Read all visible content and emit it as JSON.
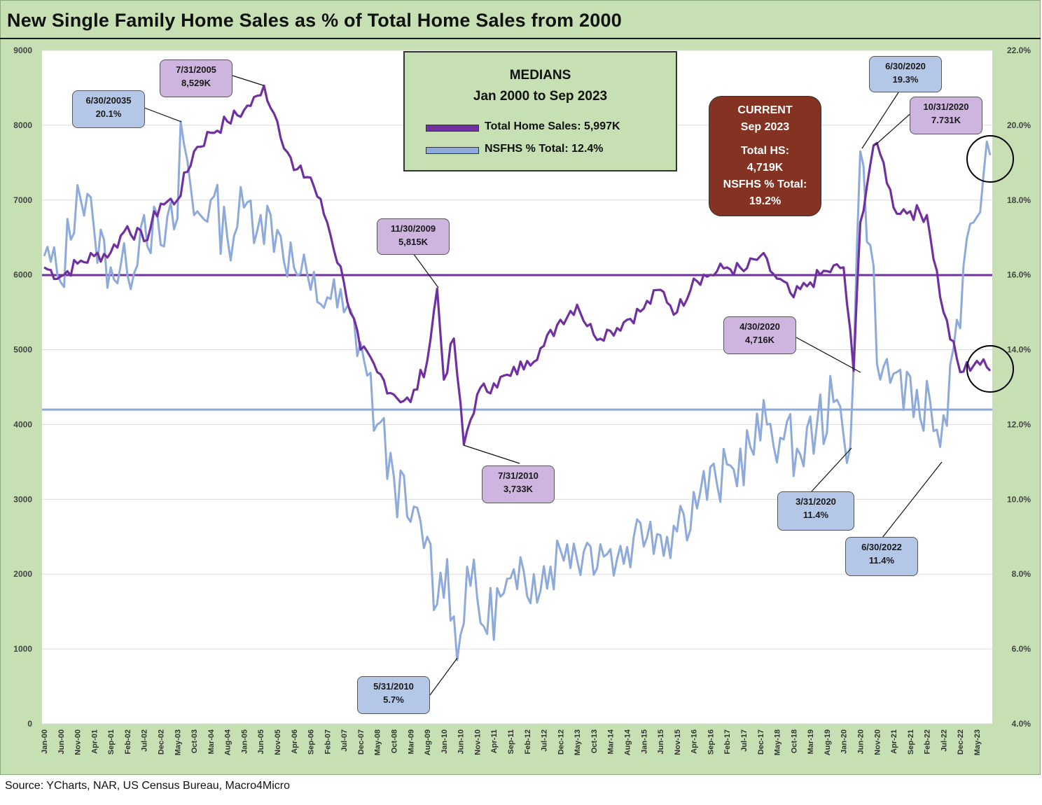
{
  "title": "New Single Family Home Sales as % of Total Home Sales from 2000",
  "source": "Source: YCharts, NAR, US Census Bureau, Macro4Micro",
  "colors": {
    "total_line": "#7030a0",
    "nsfhs_line": "#8eaadb",
    "panel": "#c6e0b4",
    "current_box": "#843222"
  },
  "medians_box": {
    "heading": "MEDIANS",
    "subheading": "Jan 2000 to Sep 2023",
    "legend_total": "Total Home Sales: 5,997K",
    "legend_nsfhs": "NSFHS % Total: 12.4%"
  },
  "current_box": {
    "l1": "CURRENT",
    "l2": "Sep 2023",
    "l3": "Total HS:",
    "l4": "4,719K",
    "l5": "NSFHS % Total:",
    "l6": "19.2%"
  },
  "callouts": [
    {
      "id": "c1",
      "date": "6/30/20035",
      "value": "20.1%",
      "color": "blue"
    },
    {
      "id": "c2",
      "date": "7/31/2005",
      "value": "8,529K",
      "color": "purple"
    },
    {
      "id": "c3",
      "date": "11/30/2009",
      "value": "5,815K",
      "color": "purple"
    },
    {
      "id": "c4",
      "date": "7/31/2010",
      "value": "3,733K",
      "color": "purple"
    },
    {
      "id": "c5",
      "date": "5/31/2010",
      "value": "5.7%",
      "color": "blue"
    },
    {
      "id": "c6",
      "date": "6/30/2020",
      "value": "19.3%",
      "color": "blue"
    },
    {
      "id": "c7",
      "date": "10/31/2020",
      "value": "7.731K",
      "color": "purple"
    },
    {
      "id": "c8",
      "date": "4/30/2020",
      "value": "4,716K",
      "color": "purple"
    },
    {
      "id": "c9",
      "date": "3/31/2020",
      "value": "11.4%",
      "color": "blue"
    },
    {
      "id": "c10",
      "date": "6/30/2022",
      "value": "11.4%",
      "color": "blue"
    }
  ],
  "chart_data": {
    "type": "line",
    "title": "New Single Family Home Sales as % of Total Home Sales from 2000",
    "y_left": {
      "min": 0,
      "max": 9000,
      "step": 1000,
      "ticks": [
        "0",
        "1000",
        "2000",
        "3000",
        "4000",
        "5000",
        "6000",
        "7000",
        "8000",
        "9000"
      ]
    },
    "y_right": {
      "min": 4,
      "max": 22,
      "step": 2,
      "ticks": [
        "4.0%",
        "6.0%",
        "8.0%",
        "10.0%",
        "12.0%",
        "14.0%",
        "16.0%",
        "18.0%",
        "20.0%",
        "22.0%"
      ]
    },
    "x_tick_labels": [
      "Jan-00",
      "Jun-00",
      "Nov-00",
      "Apr-01",
      "Sep-01",
      "Feb-02",
      "Jul-02",
      "Dec-02",
      "May-03",
      "Oct-03",
      "Mar-04",
      "Aug-04",
      "Jan-05",
      "Jun-05",
      "Nov-05",
      "Apr-06",
      "Sep-06",
      "Feb-07",
      "Jul-07",
      "Dec-07",
      "May-08",
      "Oct-08",
      "Mar-09",
      "Aug-09",
      "Jan-10",
      "Jun-10",
      "Nov-10",
      "Apr-11",
      "Sep-11",
      "Feb-12",
      "Jul-12",
      "Dec-12",
      "May-13",
      "Oct-13",
      "Mar-14",
      "Aug-14",
      "Jan-15",
      "Jun-15",
      "Nov-15",
      "Apr-16",
      "Sep-16",
      "Feb-17",
      "Jul-17",
      "Dec-17",
      "May-18",
      "Oct-18",
      "Mar-19",
      "Aug-19",
      "Jan-20",
      "Jun-20",
      "Nov-20",
      "Apr-21",
      "Sep-21",
      "Feb-22",
      "Jul-22",
      "Dec-22",
      "May-23"
    ],
    "grid": "horizontal",
    "series": [
      {
        "name": "Total Home Sales",
        "axis": "left",
        "median": 5997,
        "knots": [
          [
            "2000-01",
            6100
          ],
          [
            "2000-06",
            5980
          ],
          [
            "2000-11",
            6150
          ],
          [
            "2001-04",
            6250
          ],
          [
            "2001-09",
            6300
          ],
          [
            "2002-02",
            6650
          ],
          [
            "2002-07",
            6450
          ],
          [
            "2002-12",
            6950
          ],
          [
            "2003-05",
            7000
          ],
          [
            "2003-10",
            7650
          ],
          [
            "2004-03",
            7900
          ],
          [
            "2004-08",
            8050
          ],
          [
            "2005-01",
            8200
          ],
          [
            "2005-06",
            8400
          ],
          [
            "2005-07",
            8529
          ],
          [
            "2005-11",
            8050
          ],
          [
            "2006-04",
            7400
          ],
          [
            "2006-09",
            7300
          ],
          [
            "2007-02",
            6700
          ],
          [
            "2007-07",
            5900
          ],
          [
            "2007-12",
            5000
          ],
          [
            "2008-05",
            4700
          ],
          [
            "2008-10",
            4400
          ],
          [
            "2009-03",
            4300
          ],
          [
            "2009-08",
            4850
          ],
          [
            "2009-11",
            5815
          ],
          [
            "2010-01",
            4600
          ],
          [
            "2010-04",
            5150
          ],
          [
            "2010-07",
            3733
          ],
          [
            "2010-11",
            4400
          ],
          [
            "2011-04",
            4550
          ],
          [
            "2011-09",
            4650
          ],
          [
            "2012-02",
            4850
          ],
          [
            "2012-07",
            5050
          ],
          [
            "2012-12",
            5400
          ],
          [
            "2013-05",
            5600
          ],
          [
            "2013-10",
            5200
          ],
          [
            "2014-03",
            5250
          ],
          [
            "2014-08",
            5400
          ],
          [
            "2015-01",
            5550
          ],
          [
            "2015-06",
            5800
          ],
          [
            "2015-11",
            5500
          ],
          [
            "2016-04",
            5950
          ],
          [
            "2016-09",
            6000
          ],
          [
            "2017-02",
            6100
          ],
          [
            "2017-07",
            6050
          ],
          [
            "2017-12",
            6250
          ],
          [
            "2018-05",
            5950
          ],
          [
            "2018-10",
            5700
          ],
          [
            "2019-03",
            5900
          ],
          [
            "2019-08",
            6050
          ],
          [
            "2020-01",
            6100
          ],
          [
            "2020-04",
            4716
          ],
          [
            "2020-06",
            6700
          ],
          [
            "2020-10",
            7731
          ],
          [
            "2021-01",
            7500
          ],
          [
            "2021-04",
            6900
          ],
          [
            "2021-09",
            6850
          ],
          [
            "2022-02",
            6800
          ],
          [
            "2022-07",
            5500
          ],
          [
            "2022-12",
            4700
          ],
          [
            "2023-05",
            4850
          ],
          [
            "2023-09",
            4719
          ]
        ]
      },
      {
        "name": "NSFHS % Total",
        "axis": "right",
        "median": 12.4,
        "knots": [
          [
            "2000-01",
            16.5
          ],
          [
            "2000-06",
            15.8
          ],
          [
            "2000-11",
            18.4
          ],
          [
            "2001-04",
            17.2
          ],
          [
            "2001-09",
            16.2
          ],
          [
            "2002-02",
            16.0
          ],
          [
            "2002-07",
            17.6
          ],
          [
            "2002-12",
            16.8
          ],
          [
            "2003-05",
            17.5
          ],
          [
            "2003-06",
            20.1
          ],
          [
            "2003-10",
            17.6
          ],
          [
            "2004-03",
            18.0
          ],
          [
            "2004-08",
            17.0
          ],
          [
            "2005-01",
            17.8
          ],
          [
            "2005-06",
            17.6
          ],
          [
            "2005-11",
            17.2
          ],
          [
            "2006-04",
            16.2
          ],
          [
            "2006-09",
            15.6
          ],
          [
            "2007-02",
            15.4
          ],
          [
            "2007-07",
            15.0
          ],
          [
            "2007-12",
            14.2
          ],
          [
            "2008-05",
            12.0
          ],
          [
            "2008-10",
            10.6
          ],
          [
            "2009-03",
            9.4
          ],
          [
            "2009-08",
            9.0
          ],
          [
            "2009-11",
            7.2
          ],
          [
            "2010-02",
            8.4
          ],
          [
            "2010-05",
            5.7
          ],
          [
            "2010-08",
            8.2
          ],
          [
            "2011-01",
            6.6
          ],
          [
            "2011-06",
            7.4
          ],
          [
            "2011-11",
            7.6
          ],
          [
            "2012-04",
            8.0
          ],
          [
            "2012-09",
            8.2
          ],
          [
            "2013-02",
            8.8
          ],
          [
            "2013-07",
            8.6
          ],
          [
            "2013-12",
            8.8
          ],
          [
            "2014-05",
            8.4
          ],
          [
            "2014-10",
            9.0
          ],
          [
            "2015-03",
            9.4
          ],
          [
            "2015-08",
            9.0
          ],
          [
            "2016-01",
            9.6
          ],
          [
            "2016-06",
            10.2
          ],
          [
            "2016-11",
            10.4
          ],
          [
            "2017-04",
            10.8
          ],
          [
            "2017-09",
            11.4
          ],
          [
            "2018-02",
            12.0
          ],
          [
            "2018-07",
            11.6
          ],
          [
            "2018-12",
            11.2
          ],
          [
            "2019-05",
            12.0
          ],
          [
            "2019-10",
            12.6
          ],
          [
            "2020-03",
            11.4
          ],
          [
            "2020-06",
            19.3
          ],
          [
            "2020-09",
            16.8
          ],
          [
            "2020-12",
            13.2
          ],
          [
            "2021-05",
            13.4
          ],
          [
            "2021-10",
            12.2
          ],
          [
            "2022-03",
            12.6
          ],
          [
            "2022-06",
            11.4
          ],
          [
            "2022-11",
            14.8
          ],
          [
            "2023-04",
            17.4
          ],
          [
            "2023-09",
            19.2
          ]
        ]
      }
    ]
  }
}
